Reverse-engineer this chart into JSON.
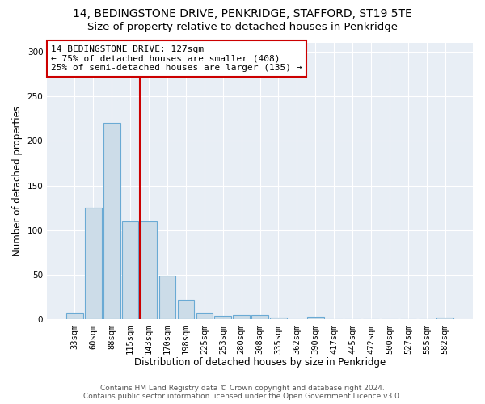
{
  "title": "14, BEDINGSTONE DRIVE, PENKRIDGE, STAFFORD, ST19 5TE",
  "subtitle": "Size of property relative to detached houses in Penkridge",
  "xlabel": "Distribution of detached houses by size in Penkridge",
  "ylabel": "Number of detached properties",
  "categories": [
    "33sqm",
    "60sqm",
    "88sqm",
    "115sqm",
    "143sqm",
    "170sqm",
    "198sqm",
    "225sqm",
    "253sqm",
    "280sqm",
    "308sqm",
    "335sqm",
    "362sqm",
    "390sqm",
    "417sqm",
    "445sqm",
    "472sqm",
    "500sqm",
    "527sqm",
    "555sqm",
    "582sqm"
  ],
  "values": [
    8,
    125,
    220,
    110,
    110,
    49,
    22,
    8,
    4,
    5,
    5,
    2,
    0,
    3,
    0,
    0,
    0,
    0,
    0,
    0,
    2
  ],
  "bar_color": "#ccdce8",
  "bar_edge_color": "#6aaad4",
  "reference_line_color": "#cc0000",
  "annotation_line1": "14 BEDINGSTONE DRIVE: 127sqm",
  "annotation_line2": "← 75% of detached houses are smaller (408)",
  "annotation_line3": "25% of semi-detached houses are larger (135) →",
  "footer_line1": "Contains HM Land Registry data © Crown copyright and database right 2024.",
  "footer_line2": "Contains public sector information licensed under the Open Government Licence v3.0.",
  "ylim": [
    0,
    310
  ],
  "background_color": "#e8eef5",
  "grid_color": "#ffffff",
  "title_fontsize": 10,
  "subtitle_fontsize": 9.5,
  "axis_label_fontsize": 8.5,
  "tick_fontsize": 7.5,
  "footer_fontsize": 6.5
}
